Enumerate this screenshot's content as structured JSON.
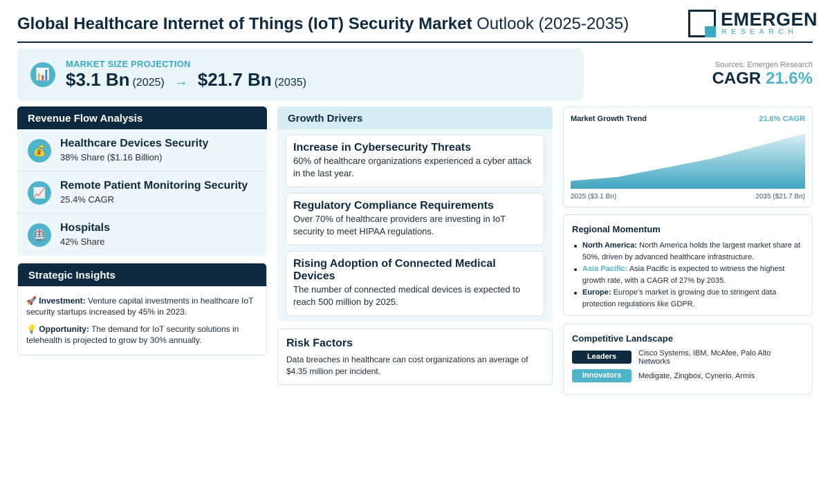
{
  "header": {
    "title_bold": "Global Healthcare Internet of Things (IoT) Security Market",
    "title_light": "Outlook (2025-2035)",
    "logo_main": "EMERGEN",
    "logo_sub": "RESEARCH"
  },
  "projection": {
    "label": "MARKET SIZE PROJECTION",
    "icon": "bar-chart-icon",
    "start_value": "$3.1 Bn",
    "start_year": "(2025)",
    "arrow": "→",
    "end_value": "$21.7 Bn",
    "end_year": "(2035)"
  },
  "sources": "Sources: Emergen Research",
  "cagr": {
    "label": "CAGR",
    "value": "21.6%"
  },
  "revenue": {
    "title": "Revenue Flow Analysis",
    "items": [
      {
        "icon": "money-bag-icon",
        "title": "Healthcare Devices Security",
        "subtitle": "38% Share ($1.16 Billion)"
      },
      {
        "icon": "trending-chart-icon",
        "title": "Remote Patient Monitoring Security",
        "subtitle": "25.4% CAGR"
      },
      {
        "icon": "hospital-icon",
        "title": "Hospitals",
        "subtitle": "42% Share"
      }
    ]
  },
  "insights": {
    "title": "Strategic Insights",
    "items": [
      {
        "icon": "🚀",
        "label": "Investment:",
        "text": " Venture capital investments in healthcare IoT security startups increased by 45% in 2023."
      },
      {
        "icon": "💡",
        "label": "Opportunity:",
        "text": " The demand for IoT security solutions in telehealth is projected to grow by 30% annually."
      }
    ]
  },
  "drivers": {
    "title": "Growth Drivers",
    "items": [
      {
        "title": "Increase in Cybersecurity Threats",
        "text": "60% of healthcare organizations experienced a cyber attack in the last year."
      },
      {
        "title": "Regulatory Compliance Requirements",
        "text": "Over 70% of healthcare providers are investing in IoT security to meet HIPAA regulations."
      },
      {
        "title": "Rising Adoption of Connected Medical Devices",
        "text": "The number of connected medical devices is expected to reach 500 million by 2025."
      }
    ]
  },
  "risk": {
    "title": "Risk Factors",
    "text": "Data breaches in healthcare can cost organizations an average of $4.35 million per incident."
  },
  "trend": {
    "title": "Market Growth Trend",
    "cagr_label": "21.6% CAGR",
    "x_start_label": "2025 ($3.1 Bn)",
    "x_end_label": "2035 ($21.7 Bn)",
    "colors": {
      "fill_top": "#d8eef4",
      "fill_bottom": "#3fa7c0"
    }
  },
  "chart_data": {
    "type": "area",
    "x": [
      2025,
      2027,
      2031,
      2035
    ],
    "values": [
      3.1,
      4.6,
      11.8,
      21.7
    ],
    "unit": "Bn",
    "title": "Market Growth Trend",
    "xlabel": "",
    "ylabel": "",
    "ylim": [
      0,
      21.7
    ],
    "grid": false,
    "legend": "none"
  },
  "regional": {
    "title": "Regional Momentum",
    "items": [
      {
        "region": "North America:",
        "text": " North America holds the largest market share at 50%, driven by advanced healthcare infrastructure.",
        "accent": false
      },
      {
        "region": "Asia Pacific:",
        "text": " Asia Pacific is expected to witness the highest growth rate, with a CAGR of 27% by 2035.",
        "accent": true
      },
      {
        "region": "Europe:",
        "text": " Europe's market is growing due to stringent data protection regulations like GDPR.",
        "accent": false
      }
    ]
  },
  "competitive": {
    "title": "Competitive Landscape",
    "rows": [
      {
        "tag": "Leaders",
        "names": "Cisco Systems, IBM, McAfee, Palo Alto Networks"
      },
      {
        "tag": "Innovators",
        "names": "Medigate, Zingbox, Cynerio, Armis"
      }
    ]
  },
  "colors": {
    "primary": "#0d2a3f",
    "accent": "#4fb3c9",
    "panel_bg": "#eef7f9"
  }
}
